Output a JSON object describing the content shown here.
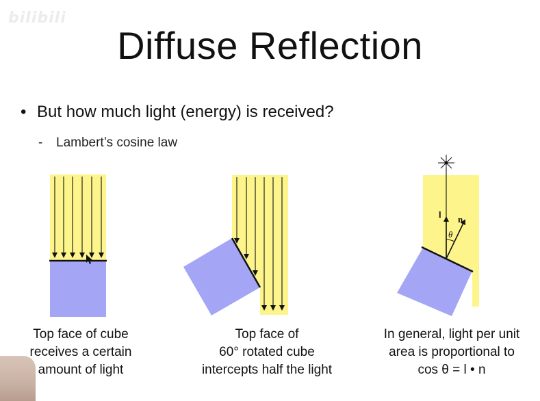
{
  "watermark": {
    "text": "bilibili"
  },
  "slide": {
    "title": "Diffuse Reflection",
    "bullet": "But how much light (energy) is received?",
    "subbullet": "Lambert’s cosine law"
  },
  "figures": [
    {
      "caption_lines": [
        "Top face of cube",
        "receives a certain",
        "amount of light"
      ]
    },
    {
      "caption_lines": [
        "Top face of",
        "60° rotated cube",
        "intercepts half the light"
      ]
    },
    {
      "caption_lines": [
        "In general, light per unit",
        "area is proportional to",
        "cos θ = l • n"
      ],
      "labels": {
        "l": "l",
        "n": "n",
        "theta": "θ"
      }
    }
  ],
  "colors": {
    "light": "#fdf58c",
    "cube": "#a4a6f5",
    "edge": "#111111"
  }
}
